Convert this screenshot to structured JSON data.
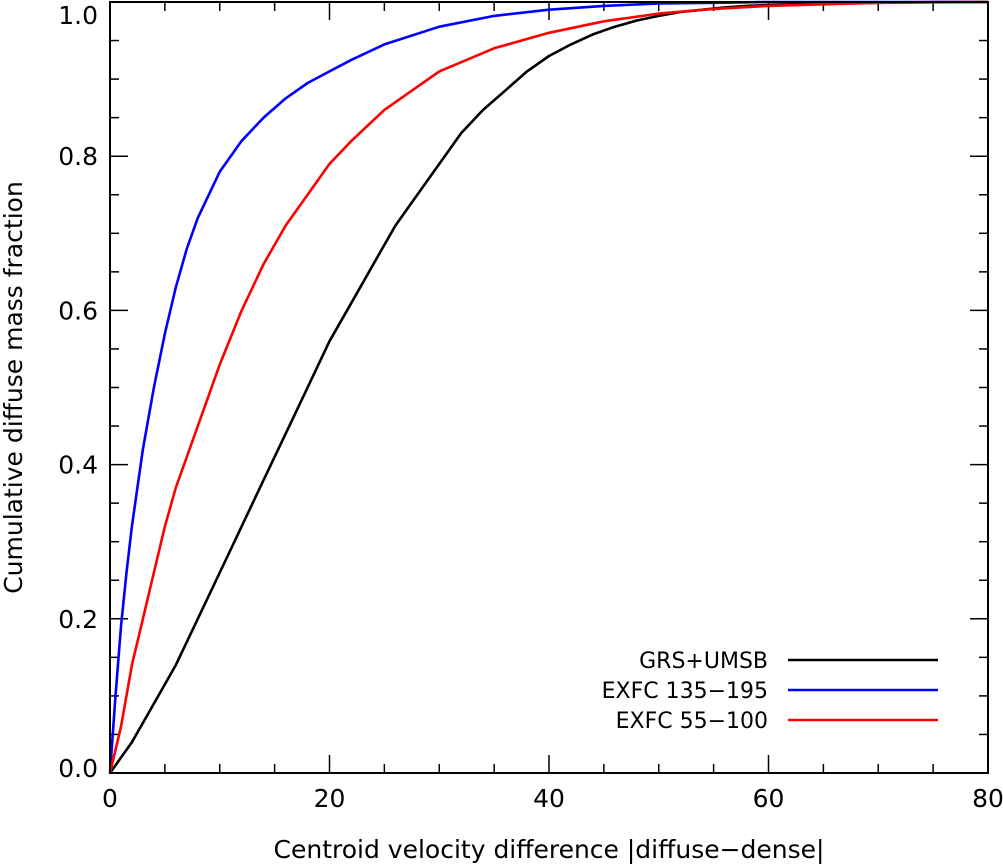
{
  "chart_data": {
    "type": "line",
    "title": "",
    "xlabel": "Centroid velocity difference |diffuse−dense|",
    "ylabel": "Cumulative diffuse mass fraction",
    "xlim": [
      0,
      80
    ],
    "ylim": [
      0,
      1
    ],
    "x_ticks": [
      0,
      20,
      40,
      60,
      80
    ],
    "x_tick_labels": [
      "0",
      "20",
      "40",
      "60",
      "80"
    ],
    "y_ticks": [
      0,
      0.2,
      0.4,
      0.6,
      0.8,
      1.0
    ],
    "y_tick_labels": [
      "0.0",
      "0.2",
      "0.4",
      "0.6",
      "0.8",
      "1.0"
    ],
    "grid": false,
    "legend_position": "bottom-right",
    "series": [
      {
        "name": "GRS+UMSB",
        "color": "#000000",
        "x": [
          0,
          2,
          4,
          6,
          8,
          10,
          12,
          14,
          16,
          18,
          20,
          22,
          24,
          26,
          28,
          30,
          32,
          34,
          36,
          38,
          40,
          42,
          44,
          46,
          48,
          50,
          52,
          54,
          56,
          58,
          60,
          65,
          70,
          75,
          80
        ],
        "y": [
          0.0,
          0.04,
          0.09,
          0.14,
          0.2,
          0.26,
          0.32,
          0.38,
          0.44,
          0.5,
          0.56,
          0.61,
          0.66,
          0.71,
          0.75,
          0.79,
          0.83,
          0.86,
          0.885,
          0.91,
          0.93,
          0.945,
          0.958,
          0.968,
          0.976,
          0.982,
          0.987,
          0.99,
          0.993,
          0.995,
          0.996,
          0.998,
          0.999,
          1.0,
          1.0
        ]
      },
      {
        "name": "EXFC 135−195",
        "color": "#0000ff",
        "x": [
          0,
          0.5,
          1,
          1.5,
          2,
          3,
          4,
          5,
          6,
          7,
          8,
          9,
          10,
          12,
          14,
          16,
          18,
          20,
          22,
          25,
          30,
          35,
          40,
          45,
          50,
          55,
          60,
          70,
          80
        ],
        "y": [
          0.0,
          0.1,
          0.19,
          0.26,
          0.32,
          0.42,
          0.5,
          0.57,
          0.63,
          0.68,
          0.72,
          0.75,
          0.78,
          0.82,
          0.85,
          0.875,
          0.895,
          0.91,
          0.925,
          0.945,
          0.968,
          0.982,
          0.99,
          0.995,
          0.998,
          0.999,
          1.0,
          1.0,
          1.0
        ]
      },
      {
        "name": "EXFC 55−100",
        "color": "#ff0000",
        "x": [
          0,
          1,
          2,
          3,
          4,
          5,
          6,
          7,
          8,
          10,
          12,
          14,
          16,
          18,
          20,
          22,
          25,
          28,
          30,
          35,
          40,
          45,
          50,
          55,
          60,
          65,
          70,
          80
        ],
        "y": [
          0.0,
          0.06,
          0.14,
          0.2,
          0.26,
          0.32,
          0.37,
          0.41,
          0.45,
          0.53,
          0.6,
          0.66,
          0.71,
          0.75,
          0.79,
          0.82,
          0.86,
          0.89,
          0.91,
          0.94,
          0.96,
          0.975,
          0.985,
          0.991,
          0.995,
          0.997,
          0.999,
          1.0
        ]
      }
    ]
  }
}
